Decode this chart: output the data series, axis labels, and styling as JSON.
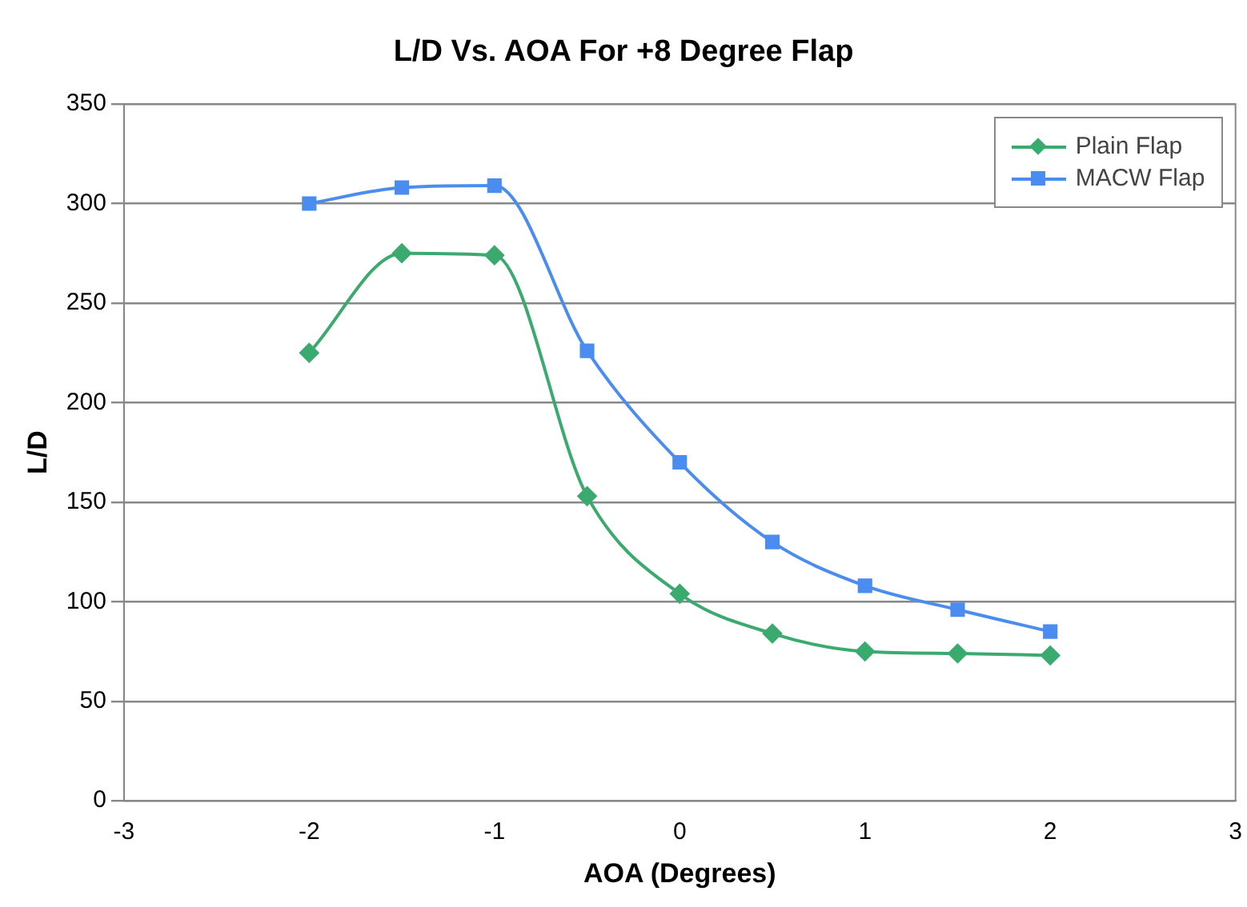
{
  "chart_data": {
    "type": "line",
    "title": "L/D Vs. AOA For +8 Degree Flap",
    "xlabel": "AOA (Degrees)",
    "ylabel": "L/D",
    "x": [
      -2,
      -1.5,
      -1,
      -0.5,
      0,
      0.5,
      1,
      1.5,
      2
    ],
    "series": [
      {
        "name": "Plain Flap",
        "color": "#3aaa6e",
        "marker": "diamond",
        "values": [
          225,
          275,
          274,
          153,
          104,
          84,
          75,
          74,
          73
        ]
      },
      {
        "name": "MACW Flap",
        "color": "#4a8cf0",
        "marker": "square",
        "values": [
          300,
          308,
          309,
          226,
          170,
          130,
          108,
          96,
          85
        ]
      }
    ],
    "xlim": [
      -3,
      3
    ],
    "xticks": [
      -3,
      -2,
      -1,
      0,
      1,
      2,
      3
    ],
    "ylim": [
      0,
      350
    ],
    "yticks": [
      0,
      50,
      100,
      150,
      200,
      250,
      300,
      350
    ],
    "grid": "y",
    "legend": "top right",
    "line_style": "solid"
  }
}
